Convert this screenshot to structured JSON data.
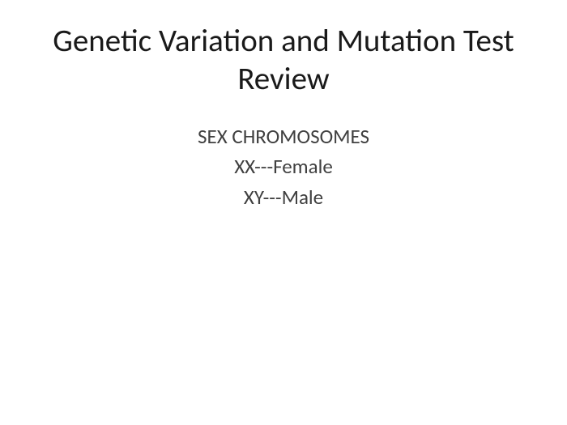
{
  "slide": {
    "title": "Genetic Variation and Mutation Test Review",
    "title_fontsize": 39,
    "title_color": "#1a1a1a",
    "body": {
      "lines": [
        "SEX CHROMOSOMES",
        "XX---Female",
        "XY---Male"
      ],
      "fontsize": 25,
      "color": "#404040"
    },
    "background_color": "#ffffff",
    "font_family": "Calibri"
  }
}
